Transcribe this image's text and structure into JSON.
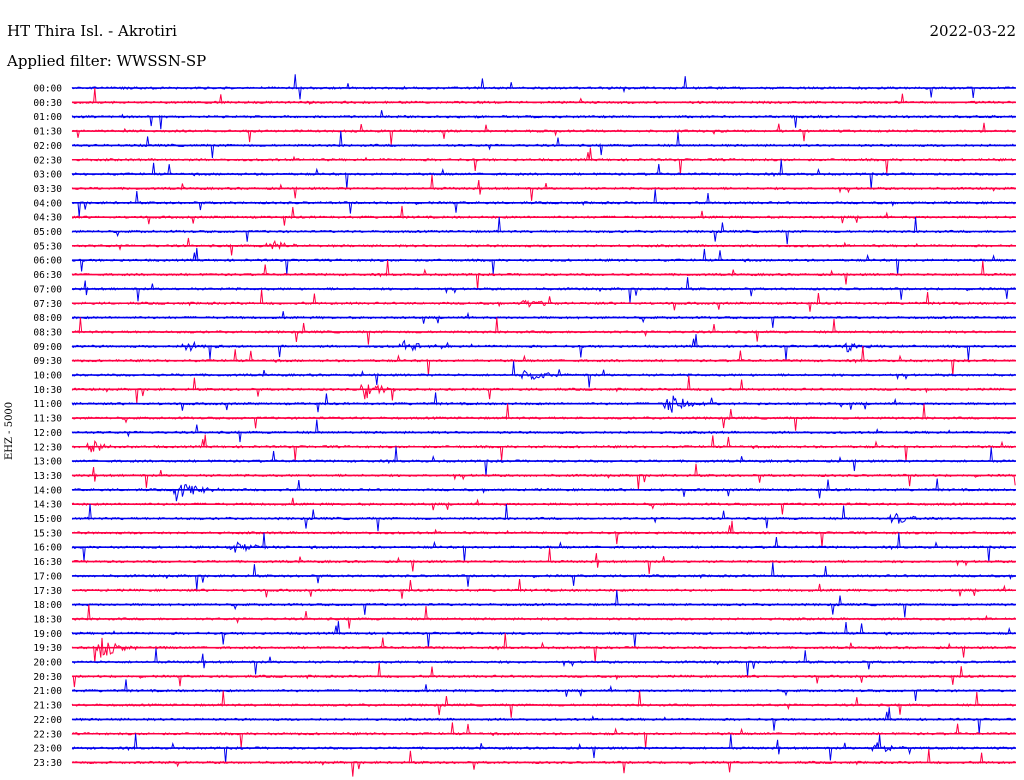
{
  "header": {
    "station": "HT Thira Isl. - Akrotiri",
    "date": "2022-03-22",
    "filter": "Applied filter: WWSSN-SP"
  },
  "side_label": "EHZ - 5000",
  "colors": {
    "even_row": "#0000ee",
    "odd_row": "#ff0044"
  },
  "chart_data": {
    "type": "line",
    "title": "HT Thira Isl. - Akrotiri",
    "xlabel": "",
    "ylabel": "EHZ - 5000",
    "grid": false,
    "rows": [
      "00:00",
      "00:30",
      "01:00",
      "01:30",
      "02:00",
      "02:30",
      "03:00",
      "03:30",
      "04:00",
      "04:30",
      "05:00",
      "05:30",
      "06:00",
      "06:30",
      "07:00",
      "07:30",
      "08:00",
      "08:30",
      "09:00",
      "09:30",
      "10:00",
      "10:30",
      "11:00",
      "11:30",
      "12:00",
      "12:30",
      "13:00",
      "13:30",
      "14:00",
      "14:30",
      "15:00",
      "15:30",
      "16:00",
      "16:30",
      "17:00",
      "17:30",
      "18:00",
      "18:30",
      "19:00",
      "19:30",
      "20:00",
      "20:30",
      "21:00",
      "21:30",
      "22:00",
      "22:30",
      "23:00",
      "23:30"
    ],
    "events": [
      {
        "row": "05:30",
        "x": 0.21,
        "amp": 0.6
      },
      {
        "row": "07:30",
        "x": 0.48,
        "amp": 0.5
      },
      {
        "row": "09:00",
        "x": 0.12,
        "amp": 0.7
      },
      {
        "row": "09:00",
        "x": 0.35,
        "amp": 0.6
      },
      {
        "row": "09:00",
        "x": 0.82,
        "amp": 0.6
      },
      {
        "row": "10:00",
        "x": 0.48,
        "amp": 0.8
      },
      {
        "row": "10:30",
        "x": 0.31,
        "amp": 1.0
      },
      {
        "row": "11:00",
        "x": 0.63,
        "amp": 1.3
      },
      {
        "row": "12:30",
        "x": 0.02,
        "amp": 0.6
      },
      {
        "row": "14:00",
        "x": 0.11,
        "amp": 1.4
      },
      {
        "row": "15:00",
        "x": 0.87,
        "amp": 0.7
      },
      {
        "row": "16:00",
        "x": 0.17,
        "amp": 0.7
      },
      {
        "row": "19:30",
        "x": 0.03,
        "amp": 1.3
      },
      {
        "row": "23:00",
        "x": 0.85,
        "amp": 0.6
      }
    ]
  }
}
